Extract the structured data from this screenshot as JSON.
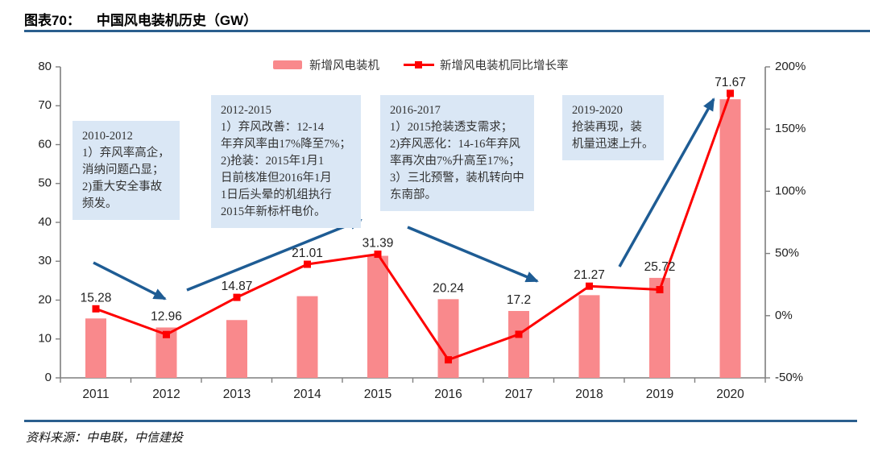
{
  "header": {
    "figure_label": "图表70：",
    "title": "中国风电装机历史（GW）"
  },
  "footer": {
    "source": "资料来源：中电联，中信建投"
  },
  "chart_data": {
    "type": "bar",
    "subtype": "combo bar + line, dual axis",
    "title": "中国风电装机历史（GW）",
    "categories": [
      "2011",
      "2012",
      "2013",
      "2014",
      "2015",
      "2016",
      "2017",
      "2018",
      "2019",
      "2020"
    ],
    "series": [
      {
        "name": "新增风电装机",
        "chart_type": "bar",
        "axis": "left",
        "unit": "GW",
        "color": "#f9898c",
        "values": [
          15.28,
          12.96,
          14.87,
          21.01,
          31.39,
          20.24,
          17.2,
          21.27,
          25.72,
          71.67
        ]
      },
      {
        "name": "新增风电装机同比增长率",
        "chart_type": "line",
        "axis": "right",
        "unit": "%",
        "color": "#fe0000",
        "values_percent_estimated": [
          5.5,
          -15.2,
          14.7,
          41.3,
          49.4,
          -35.5,
          -15.0,
          23.7,
          20.9,
          178.7
        ]
      }
    ],
    "bar_labels": [
      "15.28",
      "12.96",
      "14.87",
      "21.01",
      "31.39",
      "20.24",
      "17.2",
      "21.27",
      "25.72",
      "71.67"
    ],
    "left_axis": {
      "min": 0,
      "max": 80,
      "tick_values": [
        0,
        10,
        20,
        30,
        40,
        50,
        60,
        70,
        80
      ],
      "tick_labels": [
        "0",
        "10",
        "20",
        "30",
        "40",
        "50",
        "60",
        "70",
        "80"
      ]
    },
    "right_axis": {
      "min_percent": -50,
      "max_percent": 200,
      "tick_values": [
        -50,
        0,
        50,
        100,
        150,
        200
      ],
      "tick_labels": [
        "-50%",
        "0%",
        "50%",
        "100%",
        "150%",
        "200%"
      ]
    },
    "grid": false,
    "legend_position": "top-center"
  },
  "annotations": [
    {
      "text": "2010-2012\n1）弃风率高企，\n消纳问题凸显；\n2)重大安全事故\n频发。"
    },
    {
      "text": "2012-2015\n1）弃风改善：12-14\n年弃风率由17%降至7%；\n2)抢装：2015年1月1\n日前核准但2016年1月\n1日后头晕的机组执行\n2015年新标杆电价。"
    },
    {
      "text": "2016-2017\n1）2015抢装透支需求；\n2)弃风恶化：14-16年弃风\n率再次由7%升高至17%；\n3）三北预警，装机转向中\n东南部。"
    },
    {
      "text": "2019-2020\n抢装再现，装\n机量迅速上升。"
    }
  ],
  "colors": {
    "bar": "#f9898c",
    "line": "#fe0000",
    "arrow": "#1e5c94",
    "note_bg": "#dae7f5",
    "divider": "#2b5f8e",
    "axis": "#7f7f7f"
  }
}
